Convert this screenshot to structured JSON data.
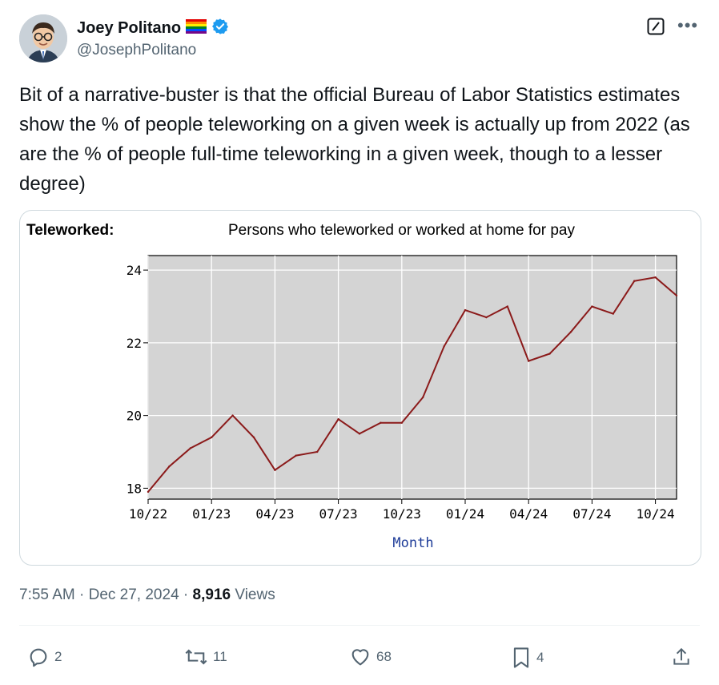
{
  "author": {
    "name": "Joey Politano",
    "flag_emoji": "🏳️‍🌈",
    "handle": "@JosephPolitano",
    "verified": true
  },
  "tweet": {
    "text": "Bit of a narrative-buster is that the official Bureau of Labor Statistics estimates show the % of people teleworking on a given week is actually up from 2022 (as are the % of people full-time teleworking in a given week, though to a lesser degree)"
  },
  "media": {
    "left_label": "Teleworked:",
    "title": "Persons who teleworked or worked at home for pay"
  },
  "chart_data": {
    "type": "line",
    "title": "Persons who teleworked or worked at home for pay",
    "xlabel": "Month",
    "ylabel": "",
    "x_ticks": [
      "10/22",
      "01/23",
      "04/23",
      "07/23",
      "10/23",
      "01/24",
      "04/24",
      "07/24",
      "10/24"
    ],
    "y_ticks": [
      18,
      20,
      22,
      24
    ],
    "ylim": [
      17.7,
      24.4
    ],
    "grid": true,
    "series": [
      {
        "color": "#8b1a1a",
        "x": [
          "2022-10",
          "2022-11",
          "2022-12",
          "2023-01",
          "2023-02",
          "2023-03",
          "2023-04",
          "2023-05",
          "2023-06",
          "2023-07",
          "2023-08",
          "2023-09",
          "2023-10",
          "2023-11",
          "2023-12",
          "2024-01",
          "2024-02",
          "2024-03",
          "2024-04",
          "2024-05",
          "2024-06",
          "2024-07",
          "2024-08",
          "2024-09",
          "2024-10",
          "2024-11"
        ],
        "values": [
          17.9,
          18.6,
          19.1,
          19.4,
          20.0,
          19.4,
          18.5,
          18.9,
          19.0,
          19.9,
          19.5,
          19.8,
          19.8,
          20.5,
          21.9,
          22.9,
          22.7,
          23.0,
          21.5,
          21.7,
          22.3,
          23.0,
          22.8,
          23.7,
          23.8,
          23.3
        ]
      }
    ]
  },
  "meta": {
    "time": "7:55 AM",
    "date": "Dec 27, 2024",
    "views_count": "8,916",
    "views_label": "Views"
  },
  "actions": {
    "replies": "2",
    "reposts": "11",
    "likes": "68",
    "bookmarks": "4"
  },
  "colors": {
    "verified": "#1d9bf0",
    "secondary_text": "#536471",
    "plot_bg": "#d4d4d4",
    "line": "#8b1a1a",
    "axis_label": "#1f3d99"
  }
}
